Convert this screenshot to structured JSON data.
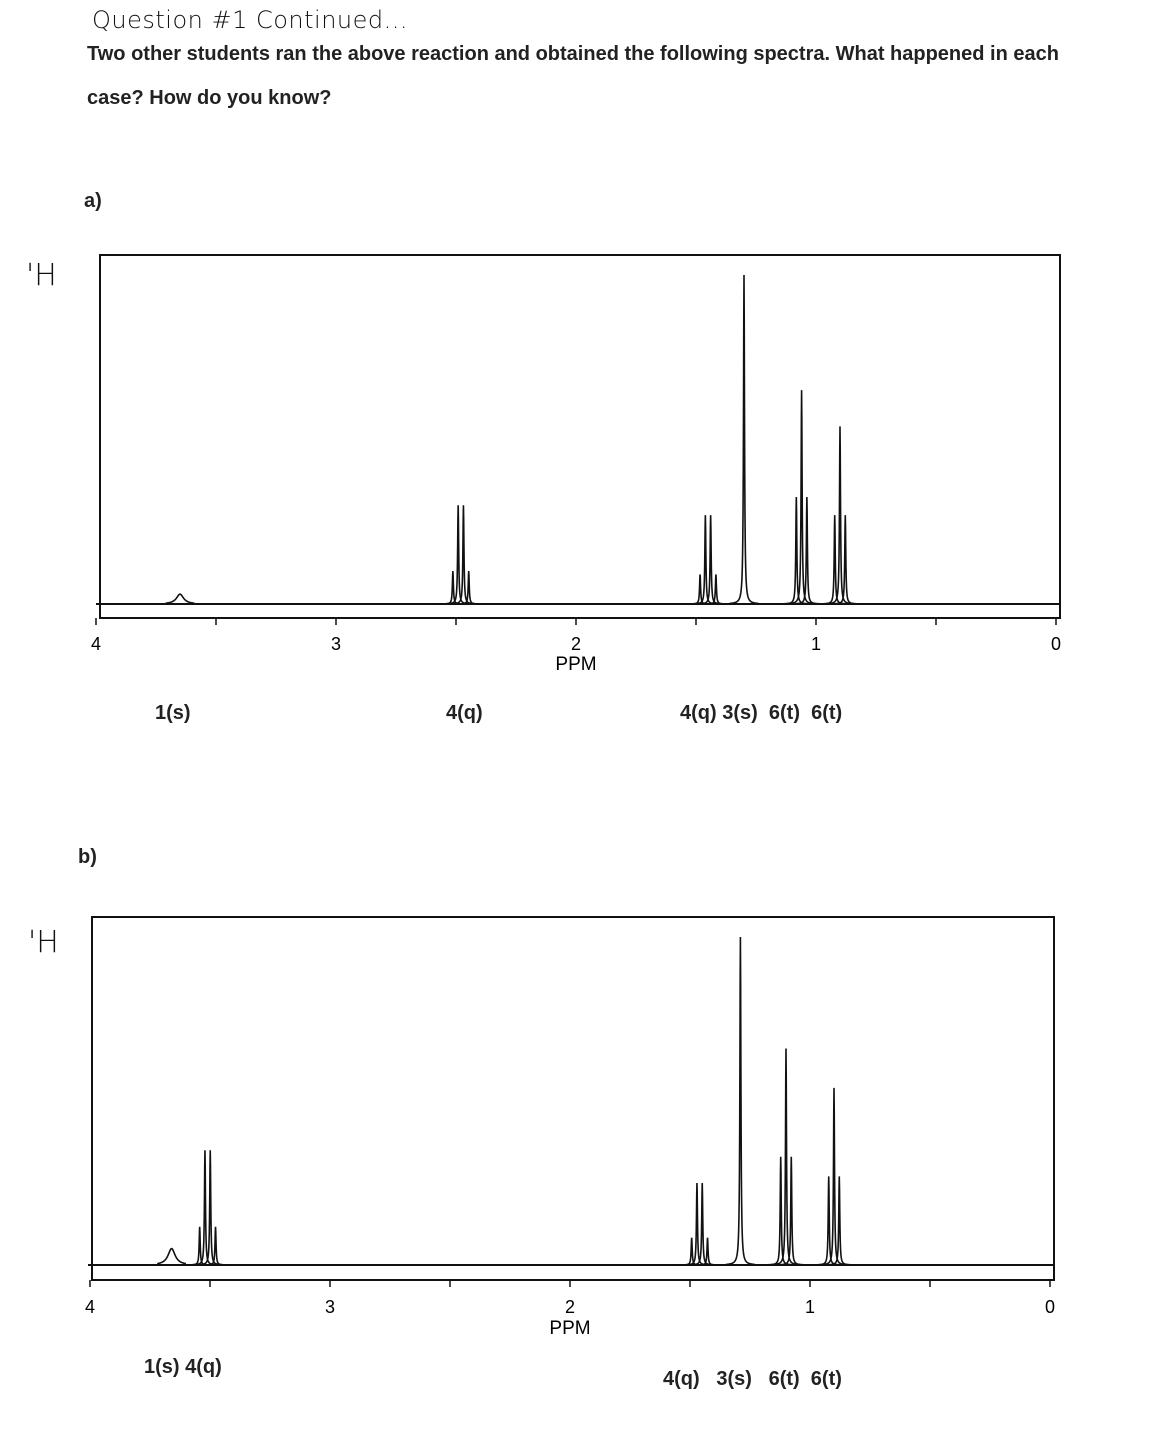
{
  "header": {
    "title": "Question #1 Continued...",
    "prompt": "Two other students ran the above reaction and obtained the following spectra. What happened in each case? How do you know?"
  },
  "chart_data": [
    {
      "type": "line",
      "part_label": "a)",
      "side_label": "'H",
      "xlabel": "PPM",
      "xlim": [
        4,
        0
      ],
      "x_reversed": true,
      "x_tick_labels": [
        "4",
        "3",
        "2",
        "1",
        "0"
      ],
      "x_minor_step": 0.5,
      "grid": false,
      "multiplets": [
        {
          "ppm": 3.65,
          "multiplicity": "s",
          "height": 0.03,
          "broad": true
        },
        {
          "ppm": 2.48,
          "multiplicity": "q",
          "height": 0.3
        },
        {
          "ppm": 1.45,
          "multiplicity": "q",
          "height": 0.27
        },
        {
          "ppm": 1.3,
          "multiplicity": "s",
          "height": 1.0
        },
        {
          "ppm": 1.06,
          "multiplicity": "t",
          "height": 0.65
        },
        {
          "ppm": 0.9,
          "multiplicity": "t",
          "height": 0.54
        }
      ],
      "annotations": [
        "1(s)",
        "4(q)",
        "4(q) 3(s)  6(t)  6(t)"
      ]
    },
    {
      "type": "line",
      "part_label": "b)",
      "side_label": "'H",
      "xlabel": "PPM",
      "xlim": [
        4,
        0
      ],
      "x_reversed": true,
      "x_tick_labels": [
        "4",
        "3",
        "2",
        "1",
        "0"
      ],
      "x_minor_step": 0.5,
      "grid": false,
      "multiplets": [
        {
          "ppm": 3.66,
          "multiplicity": "s",
          "height": 0.05,
          "broad": true
        },
        {
          "ppm": 3.51,
          "multiplicity": "q",
          "height": 0.35
        },
        {
          "ppm": 1.46,
          "multiplicity": "q",
          "height": 0.25
        },
        {
          "ppm": 1.29,
          "multiplicity": "s",
          "height": 1.0
        },
        {
          "ppm": 1.1,
          "multiplicity": "t",
          "height": 0.66
        },
        {
          "ppm": 0.9,
          "multiplicity": "t",
          "height": 0.54
        }
      ],
      "annotations": [
        "1(s) 4(q)",
        "4(q)   3(s)   6(t)  6(t)"
      ]
    }
  ]
}
